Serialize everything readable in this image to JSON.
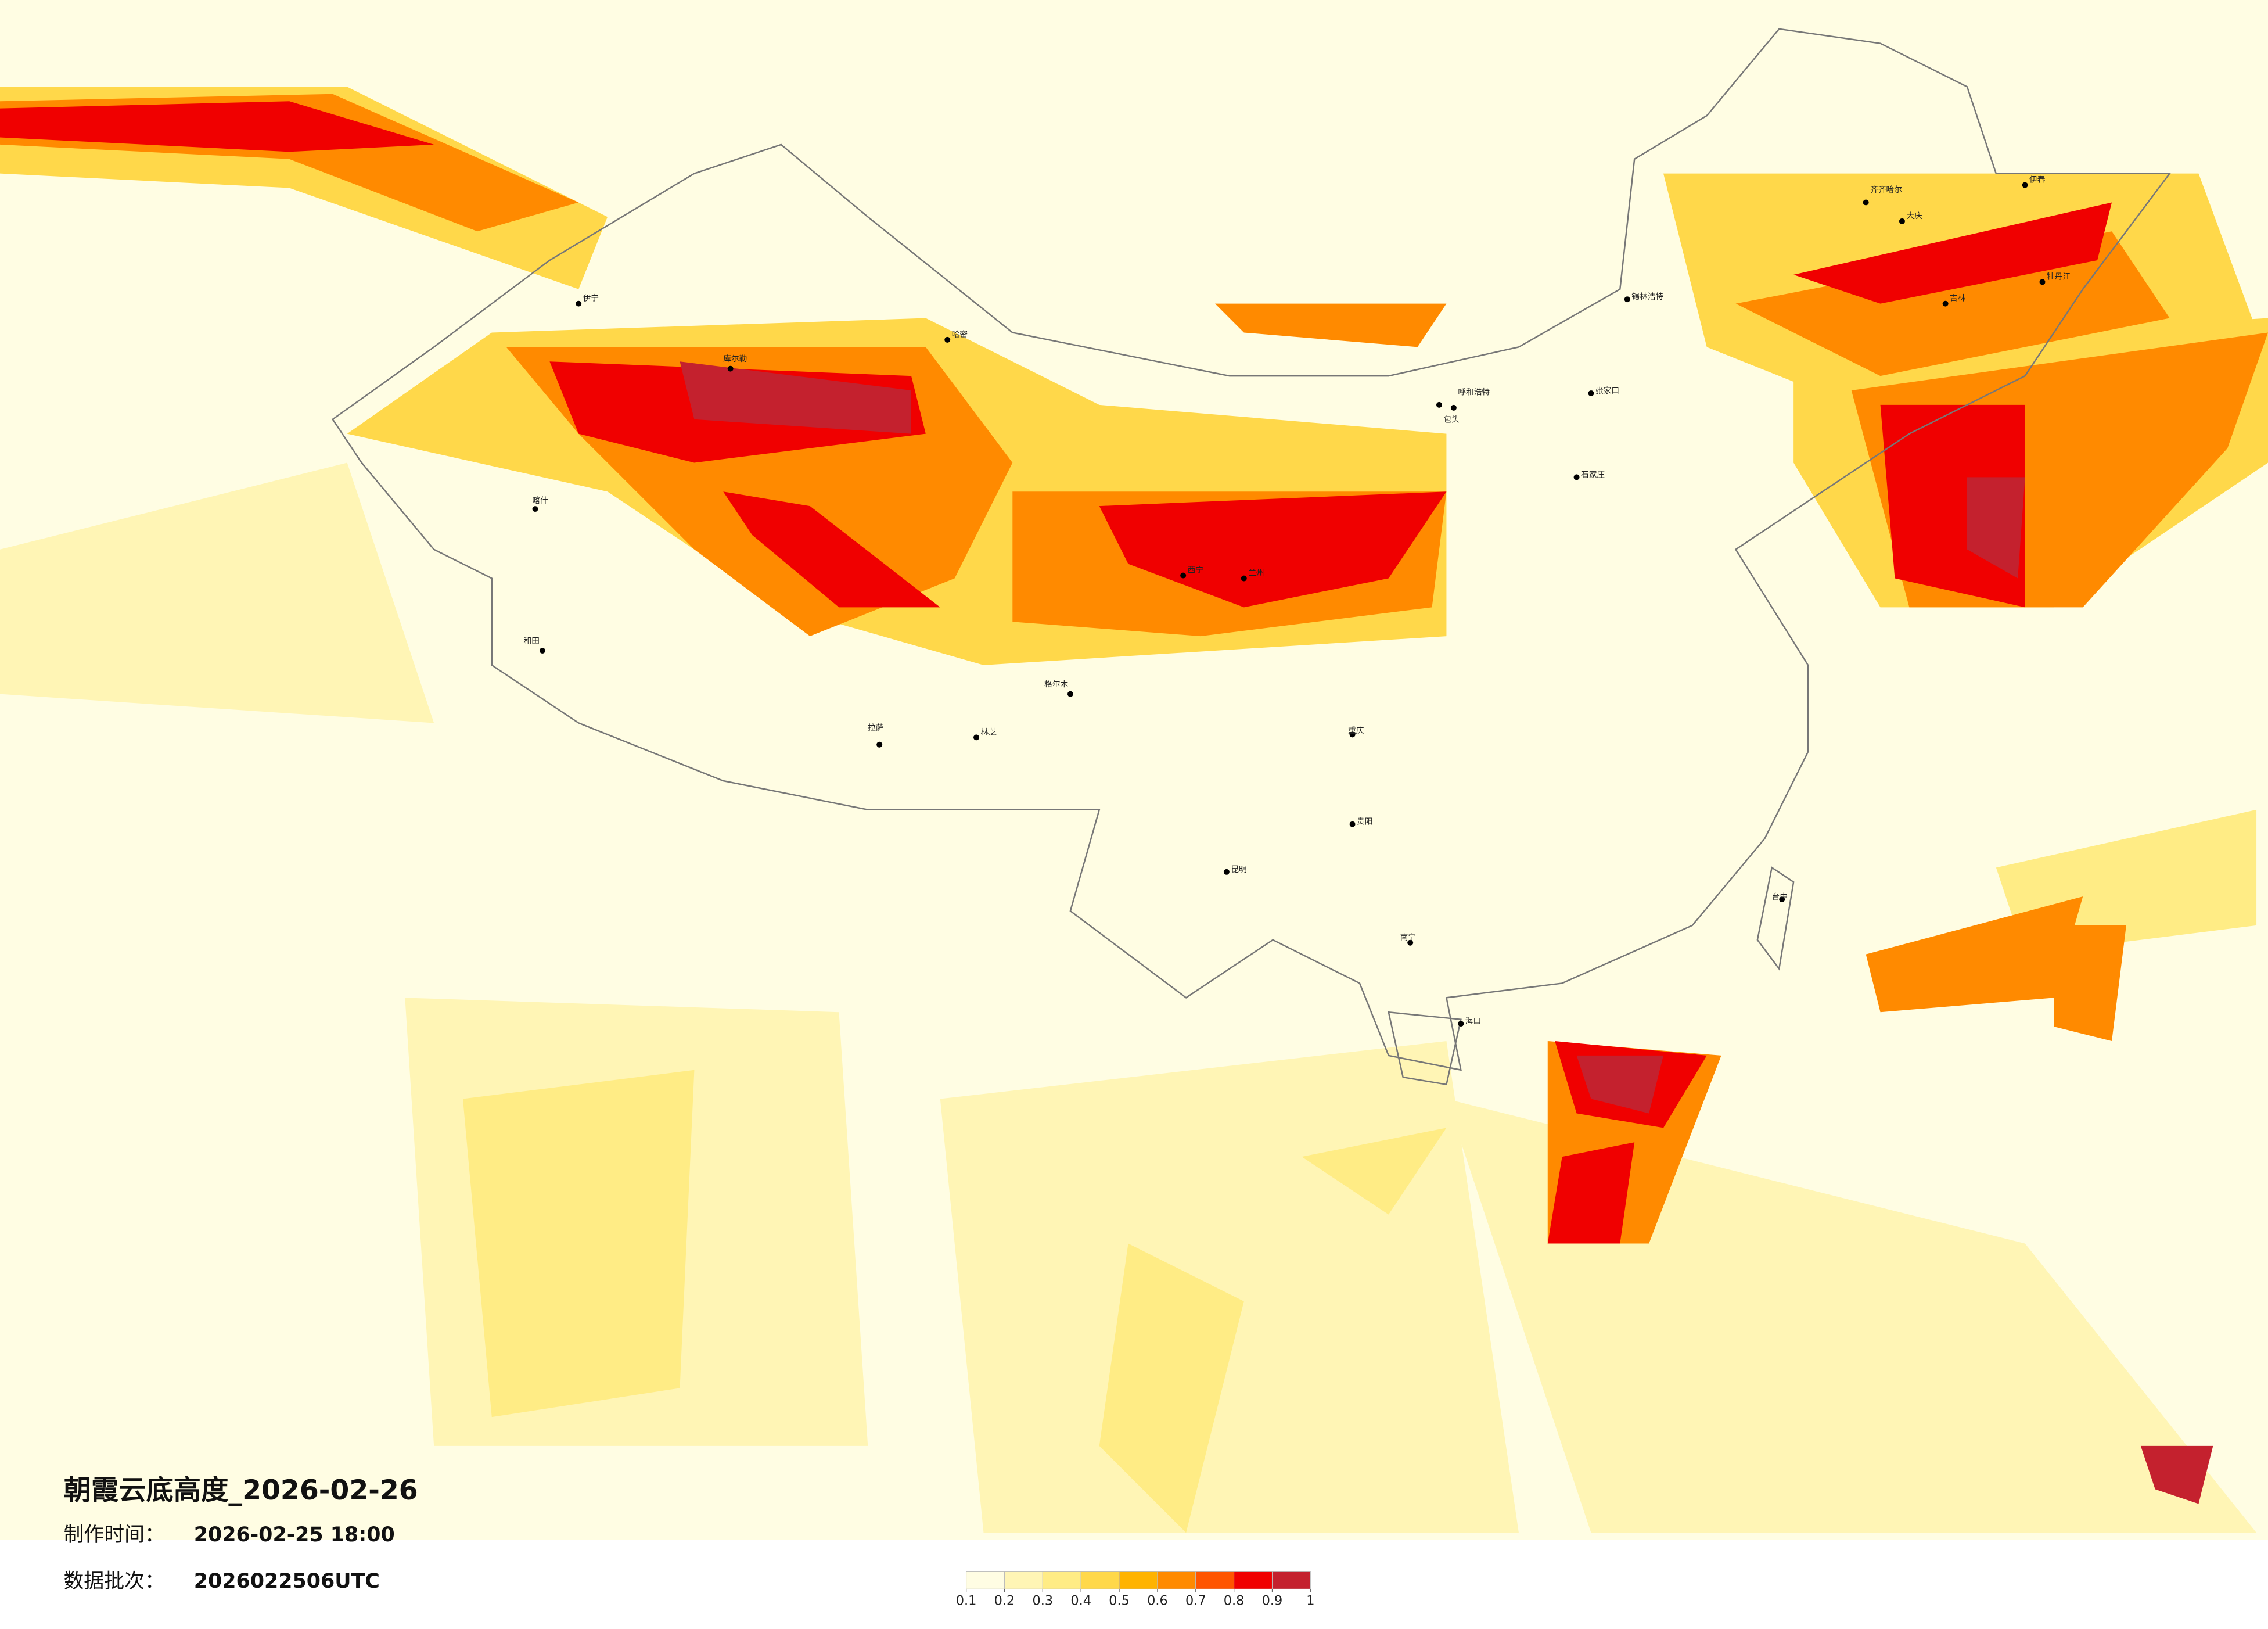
{
  "map": {
    "title": "朝霞云底高度_2026-02-26",
    "production_time": {
      "label": "制作时间：",
      "value": "2026-02-25 18:00"
    },
    "data_batch": {
      "label": "数据批次：",
      "value": "2026022506UTC"
    },
    "legend": {
      "ticks": [
        0.1,
        0.2,
        0.3,
        0.4,
        0.5,
        0.6,
        0.7,
        0.8,
        0.9,
        1
      ],
      "colors": [
        "#fffde3",
        "#fff5b5",
        "#ffec85",
        "#ffd84a",
        "#ffb300",
        "#ff8a00",
        "#ff5500",
        "#f00000",
        "#c4212e"
      ]
    },
    "cities": [
      "哈密",
      "伊宁",
      "库尔勒",
      "喀什",
      "和田",
      "格尔木",
      "西宁",
      "兰州",
      "呼和浩特",
      "包头",
      "张家口",
      "石家庄",
      "锡林浩特",
      "齐齐哈尔",
      "伊春",
      "牡丹江",
      "吉林",
      "大庆",
      "拉萨",
      "林芝",
      "昆明",
      "贵阳",
      "重庆",
      "南宁",
      "海口",
      "台中"
    ]
  }
}
